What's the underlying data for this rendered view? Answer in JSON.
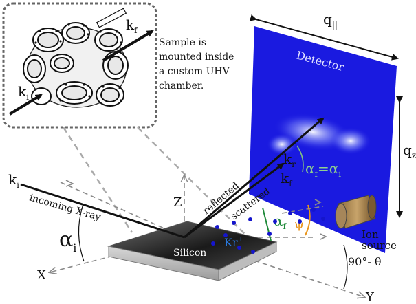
{
  "inset": {
    "note_lines": [
      "Sample is",
      "mounted inside",
      "a custom UHV",
      "chamber."
    ],
    "k_i": "k",
    "k_i_sub": "i",
    "k_f": "k",
    "k_f_sub": "f"
  },
  "detector": {
    "title": "Detector",
    "q_parallel": "q",
    "q_parallel_sub": "||",
    "q_z": "q",
    "q_z_sub": "z"
  },
  "beams": {
    "k_i": "k",
    "k_i_sub": "i",
    "k_r": "k",
    "k_r_sub": "r",
    "k_f": "k",
    "k_f_sub": "f",
    "incoming": "incoming X-ray",
    "reflected": "reflected",
    "scattered": "scattered"
  },
  "angles": {
    "alpha_i": "α",
    "alpha_i_sub": "i",
    "alpha_f": "α",
    "alpha_f_sub": "f",
    "alpha_eq_a": "α",
    "alpha_eq_a_sub": "f",
    "alpha_eq_eq": "=",
    "alpha_eq_b": "α",
    "alpha_eq_b_sub": "i",
    "psi": "ψ",
    "ninety_theta": "90°- θ"
  },
  "axes": {
    "x": "X",
    "y": "Y",
    "z": "Z"
  },
  "sample": {
    "label": "Silicon",
    "ion": "Kr",
    "ion_sup": "+"
  },
  "ion_source": {
    "line1": "Ion",
    "line2": "source"
  },
  "colors": {
    "detector": "#1a1ae0",
    "alpha_f_green": "#1f8a3a",
    "psi_orange": "#e8941a",
    "ion_blue": "#2a7be0",
    "guide_gray": "#9a9a9a"
  }
}
